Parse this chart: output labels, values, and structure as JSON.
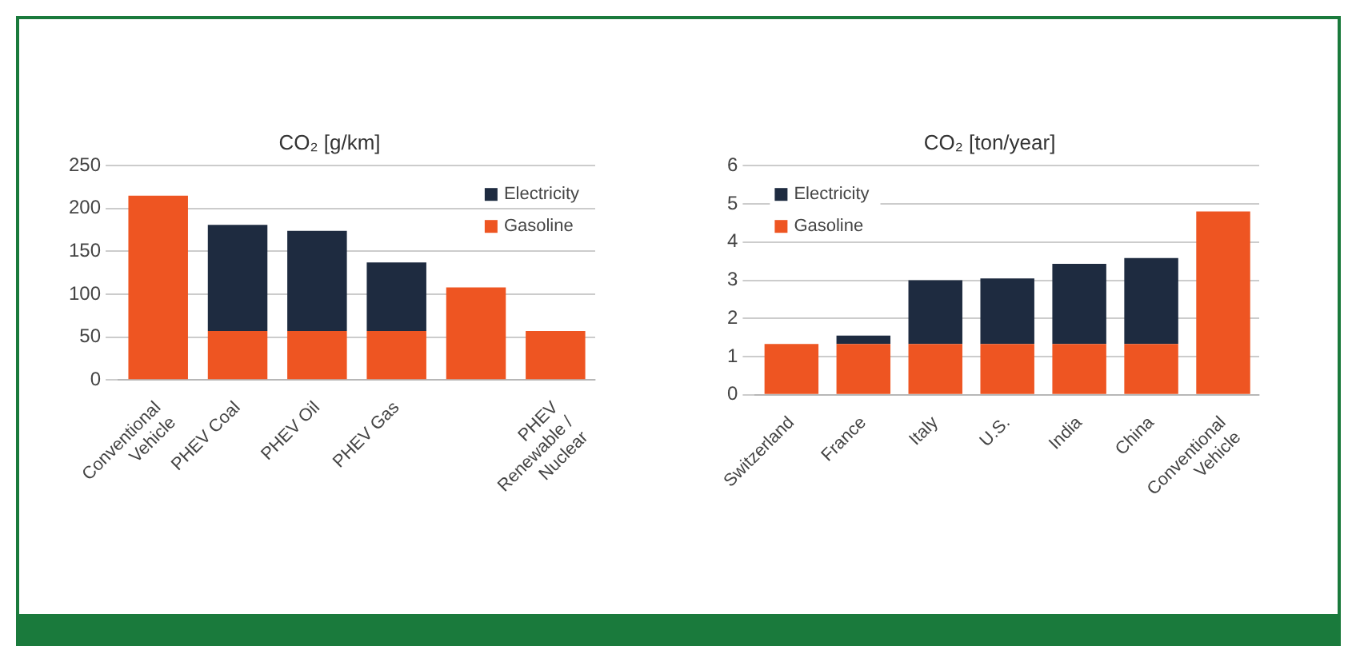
{
  "chart_data": [
    {
      "type": "bar",
      "title": "CO₂ [g/km]",
      "stacked": true,
      "grid": "y",
      "legend": "top right",
      "categories": [
        "Conventional Vehicle",
        "PHEV Coal",
        "PHEV Oil",
        "PHEV Gas",
        null,
        "PHEV Renewable / Nuclear"
      ],
      "ylim": [
        0,
        250
      ],
      "yticks": [
        0,
        50,
        100,
        150,
        200,
        250
      ],
      "series": [
        {
          "name": "Gasoline",
          "color": "#ee5522",
          "values": [
            215,
            57,
            57,
            57,
            108,
            57
          ]
        },
        {
          "name": "Electricity",
          "color": "#1e2b40",
          "values": [
            null,
            124,
            117,
            80,
            null,
            null
          ]
        }
      ]
    },
    {
      "type": "bar",
      "title": "CO₂ [ton/year]",
      "stacked": true,
      "grid": "y",
      "legend": "top left",
      "categories": [
        "Switzerland",
        "France",
        "Italy",
        "U.S.",
        "India",
        "China",
        "Conventional Vehicle"
      ],
      "ylim": [
        0,
        6
      ],
      "yticks": [
        0,
        1,
        2,
        3,
        4,
        5,
        6
      ],
      "series": [
        {
          "name": "Gasoline",
          "color": "#ee5522",
          "values": [
            1.33,
            1.33,
            1.33,
            1.33,
            1.33,
            1.33,
            4.8
          ]
        },
        {
          "name": "Electricity",
          "color": "#1e2b40",
          "values": [
            null,
            0.22,
            1.67,
            1.72,
            2.1,
            2.25,
            null
          ]
        }
      ]
    }
  ]
}
